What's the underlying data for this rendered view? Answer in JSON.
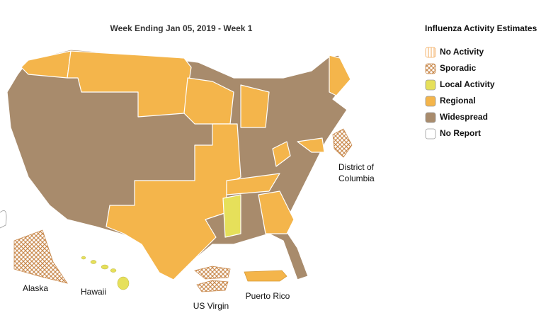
{
  "title": "Week Ending Jan 05, 2019 - Week 1",
  "legend": {
    "title": "Influenza Activity Estimates",
    "items": [
      {
        "name": "No Activity",
        "color": "#f2a95a"
      },
      {
        "name": "Sporadic",
        "color": "#c98a4e"
      },
      {
        "name": "Local Activity",
        "color": "#e6e05a"
      },
      {
        "name": "Regional",
        "color": "#f4b54b"
      },
      {
        "name": "Widespread",
        "color": "#a88b6c"
      },
      {
        "name": "No Report",
        "color": "#ffffff"
      }
    ]
  },
  "labels": {
    "alaska": "Alaska",
    "hawaii": "Hawaii",
    "usvi": "US Virgin",
    "pr": "Puerto Rico",
    "dc": [
      "District of",
      "Columbia"
    ]
  }
}
